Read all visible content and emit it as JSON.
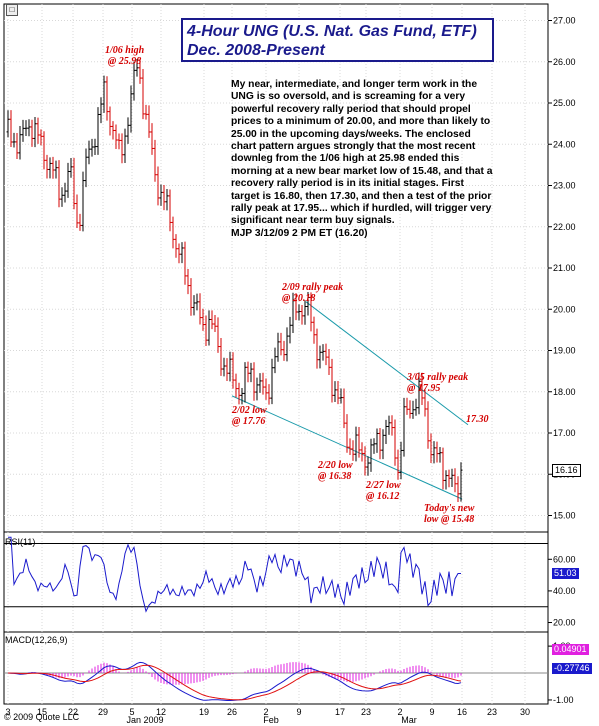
{
  "title": {
    "line1": "4-Hour UNG (U.S. Nat. Gas Fund, ETF)",
    "line2": "Dec. 2008-Present"
  },
  "commentary": "My near, intermediate, and longer term work in the UNG is so oversold, and is screaming for a very powerful recovery rally period that should propel prices to a minimum of 20.00, and more than likely to 25.00 in the upcoming days/weeks. The enclosed chart pattern argues strongly that the most recent downleg from the 1/06 high at 25.98 ended this morning at a new bear market low of 15.48, and that a recovery rally period is in its initial stages. First target is 16.80, then 17.30, and then a test of the prior rally peak at 17.95... which if hurdled, will trigger very significant near term buy signals.\nMJP  3/12/09  2 PM ET  (16.20)",
  "annotations": {
    "high_0106": {
      "line1": "1/06 high",
      "line2": "@ 25.98"
    },
    "peak_0209": {
      "line1": "2/09 rally peak",
      "line2": "@ 20.18"
    },
    "low_0202": {
      "line1": "2/02 low",
      "line2": "@ 17.76"
    },
    "peak_0305": {
      "line1": "3/05 rally peak",
      "line2": "@ 17.95"
    },
    "target_1730": {
      "line1": "17.30"
    },
    "low_0220": {
      "line1": "2/20 low",
      "line2": "@ 16.38"
    },
    "low_0227": {
      "line1": "2/27 low",
      "line2": "@ 16.12"
    },
    "new_low": {
      "line1": "Today's new",
      "line2": "low @ 15.48"
    }
  },
  "icons": {
    "nav": "expand-icon"
  },
  "copyright": "© 2009 Quote LLC",
  "colors": {
    "price_up": "#000000",
    "price_down": "#d40000",
    "trendline": "#1a9aaa",
    "rsi": "#1a1acc",
    "macd": "#1a1acc",
    "signal": "#e01010",
    "histogram": "#e020e0",
    "annotation": "#d40000",
    "title": "#1a1a8c"
  },
  "chart_data": [
    {
      "type": "candlestick",
      "panel": "price",
      "ylim": [
        14.6,
        27.4
      ],
      "y_ticks": [
        "15.00",
        "16.00",
        "17.00",
        "18.00",
        "19.00",
        "20.00",
        "21.00",
        "22.00",
        "23.00",
        "24.00",
        "25.00",
        "26.00",
        "27.00"
      ],
      "last_value_label": "16.16",
      "x_tick_labels": [
        "3",
        "15",
        "22",
        "29",
        "5",
        "12",
        "19",
        "26",
        "2",
        "9",
        "17",
        "23",
        "2",
        "9",
        "16",
        "23",
        "30"
      ],
      "month_labels": [
        "Jan 2009",
        "Feb",
        "Mar"
      ],
      "key_points": [
        {
          "date": "1/06",
          "value": 25.98,
          "kind": "high"
        },
        {
          "date": "2/02",
          "value": 17.76,
          "kind": "low"
        },
        {
          "date": "2/09",
          "value": 20.18,
          "kind": "high"
        },
        {
          "date": "2/20",
          "value": 16.38,
          "kind": "low"
        },
        {
          "date": "2/27",
          "value": 16.12,
          "kind": "low"
        },
        {
          "date": "3/05",
          "value": 17.95,
          "kind": "high"
        },
        {
          "date": "3/12",
          "value": 15.48,
          "kind": "low"
        },
        {
          "date": "3/12",
          "value": 16.2,
          "kind": "last"
        }
      ],
      "targets": [
        16.8,
        17.3,
        17.95
      ]
    },
    {
      "type": "line",
      "panel": "rsi",
      "label": "RSI(11)",
      "ylim": [
        14,
        76
      ],
      "y_ticks": [
        "20.00",
        "40.00",
        "60.00"
      ],
      "reference_lines": [
        30,
        70
      ],
      "last_value_label": "51.03"
    },
    {
      "type": "line",
      "panel": "macd",
      "label": "MACD(12,26,9)",
      "ylim": [
        -1.15,
        1.45
      ],
      "y_ticks": [
        "-1.00",
        "1.00"
      ],
      "series": [
        {
          "name": "MACD",
          "last_value_label": "0.04901"
        },
        {
          "name": "Signal",
          "last_value_label": "-0.27746"
        },
        {
          "name": "Histogram"
        }
      ]
    }
  ]
}
